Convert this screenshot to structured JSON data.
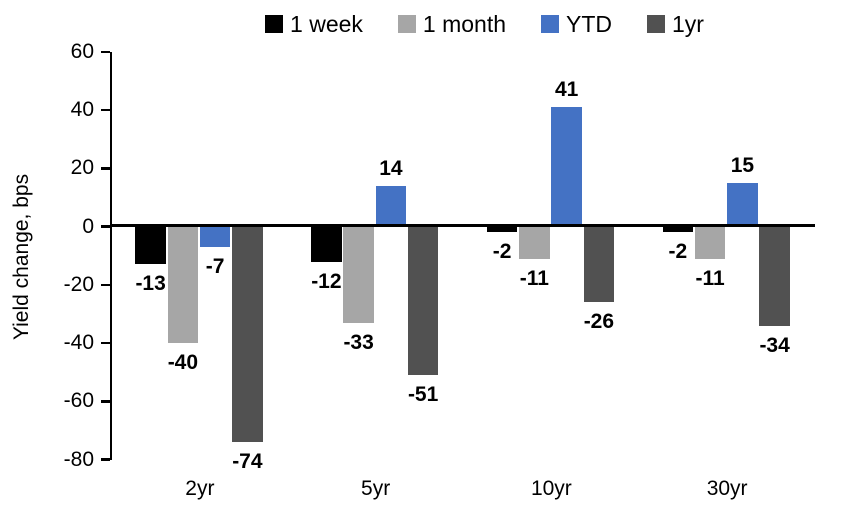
{
  "chart_data": {
    "type": "bar",
    "ylabel": "Yield change, bps",
    "categories": [
      "2yr",
      "5yr",
      "10yr",
      "30yr"
    ],
    "series": [
      {
        "name": "1 week",
        "color": "#000000",
        "values": [
          -13,
          -12,
          -2,
          -2
        ]
      },
      {
        "name": "1 month",
        "color": "#A6A6A6",
        "values": [
          -40,
          -33,
          -11,
          -11
        ]
      },
      {
        "name": "YTD",
        "color": "#4472C4",
        "values": [
          -7,
          14,
          41,
          15
        ]
      },
      {
        "name": "1yr",
        "color": "#515151",
        "values": [
          -74,
          -51,
          -26,
          -34
        ]
      }
    ],
    "ylim": [
      -80,
      60
    ],
    "yticks": [
      60,
      40,
      20,
      0,
      -20,
      -40,
      -60,
      -80
    ],
    "ytick_step": 20,
    "grid": false,
    "legend_position": "top",
    "data_labels": true,
    "axis_color": "#000000",
    "background_color": "#FFFFFF"
  }
}
